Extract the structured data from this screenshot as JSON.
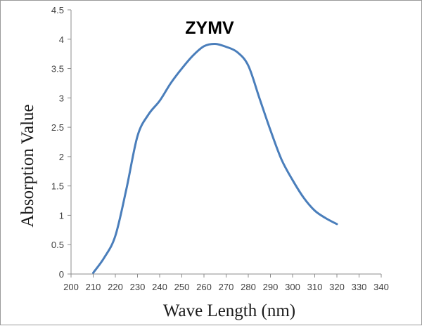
{
  "chart_data": {
    "type": "line",
    "title": "ZYMV",
    "xlabel": "Wave Length (nm)",
    "ylabel": "Absorption Value",
    "xlim": [
      200,
      340
    ],
    "ylim": [
      0,
      4.5
    ],
    "x_ticks": [
      "200",
      "210",
      "220",
      "230",
      "240",
      "250",
      "260",
      "270",
      "280",
      "290",
      "300",
      "310",
      "320",
      "330",
      "340"
    ],
    "y_ticks": [
      "0",
      "0.5",
      "1",
      "1.5",
      "2",
      "2.5",
      "3",
      "3.5",
      "4",
      "4.5"
    ],
    "grid": false,
    "legend": "none",
    "series": [
      {
        "color": "#4a7ebb",
        "x": [
          210,
          215,
          220,
          225,
          230,
          235,
          240,
          245,
          250,
          255,
          260,
          265,
          270,
          275,
          280,
          285,
          290,
          295,
          300,
          305,
          310,
          315,
          320
        ],
        "y": [
          0.02,
          0.28,
          0.65,
          1.45,
          2.35,
          2.72,
          2.95,
          3.25,
          3.5,
          3.72,
          3.88,
          3.92,
          3.87,
          3.78,
          3.55,
          3.0,
          2.45,
          1.95,
          1.6,
          1.3,
          1.08,
          0.95,
          0.85
        ]
      }
    ]
  }
}
